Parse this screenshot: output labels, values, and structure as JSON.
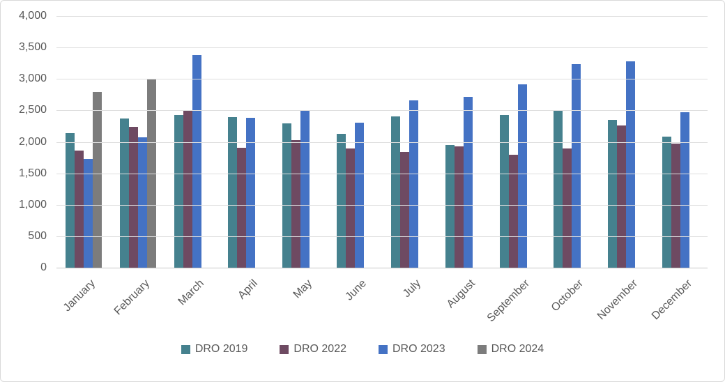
{
  "chart_data": {
    "type": "bar",
    "title": "",
    "categories": [
      "January",
      "February",
      "March",
      "April",
      "May",
      "June",
      "July",
      "August",
      "September",
      "October",
      "November",
      "December"
    ],
    "series": [
      {
        "name": "DRO 2019",
        "color": "#45818E",
        "values": [
          2140,
          2370,
          2430,
          2390,
          2290,
          2130,
          2400,
          1950,
          2430,
          2510,
          2350,
          2080
        ]
      },
      {
        "name": "DRO 2022",
        "color": "#6E4A62",
        "values": [
          1860,
          2240,
          2500,
          1910,
          2030,
          1900,
          1840,
          1930,
          1800,
          1890,
          2260,
          1970
        ]
      },
      {
        "name": "DRO 2023",
        "color": "#4472C4",
        "values": [
          1730,
          2070,
          3380,
          2380,
          2500,
          2310,
          2660,
          2710,
          2910,
          3240,
          3280,
          2470
        ]
      },
      {
        "name": "DRO 2024",
        "color": "#7C7C7C",
        "values": [
          2790,
          3000,
          null,
          null,
          null,
          null,
          null,
          null,
          null,
          null,
          null,
          null
        ]
      }
    ],
    "ylim": [
      0,
      4000
    ],
    "y_tick_step": 500,
    "y_ticks": [
      "0",
      "500",
      "1,000",
      "1,500",
      "2,000",
      "2,500",
      "3,000",
      "3,500",
      "4,000"
    ],
    "xlabel": "",
    "ylabel": "",
    "grid": "horizontal",
    "legend_position": "bottom",
    "colors": {
      "axis_text": "#595959",
      "gridline": "#DEDEDE",
      "axis_line": "#C6C6C6",
      "chart_border": "#D9D9D9",
      "background": "#FFFFFF"
    }
  }
}
